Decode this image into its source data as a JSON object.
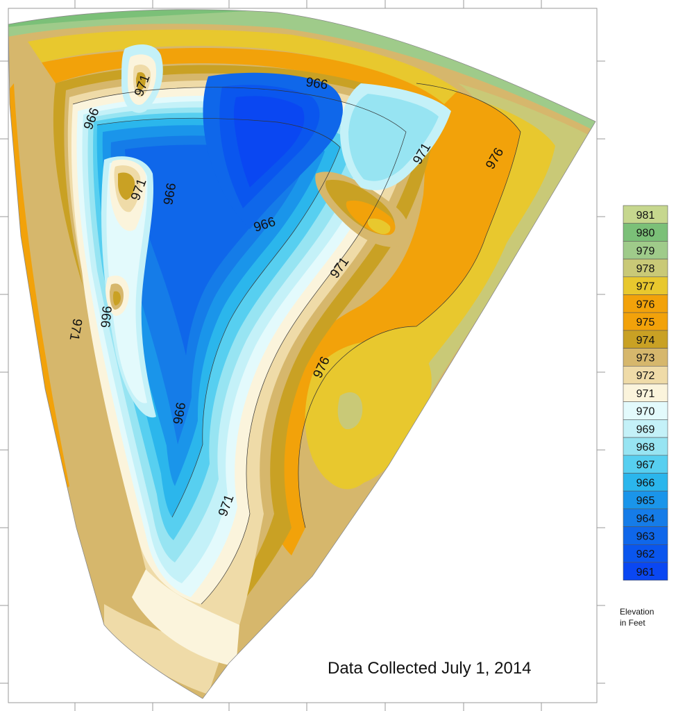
{
  "map": {
    "caption": "Data Collected July 1, 2014",
    "legend_title_line1": "Elevation",
    "legend_title_line2": "in Feet",
    "legend": [
      {
        "label": "981",
        "color": "#c6d78e"
      },
      {
        "label": "980",
        "color": "#7bc078"
      },
      {
        "label": "979",
        "color": "#9fcb8a"
      },
      {
        "label": "978",
        "color": "#c9c977"
      },
      {
        "label": "977",
        "color": "#e8c82e"
      },
      {
        "label": "976",
        "color": "#f2a20a"
      },
      {
        "label": "975",
        "color": "#f2a20a"
      },
      {
        "label": "974",
        "color": "#c9a124"
      },
      {
        "label": "973",
        "color": "#d6b76c"
      },
      {
        "label": "972",
        "color": "#efdba8"
      },
      {
        "label": "971",
        "color": "#fbf4dc"
      },
      {
        "label": "970",
        "color": "#e3fafc"
      },
      {
        "label": "969",
        "color": "#c4f1f8"
      },
      {
        "label": "968",
        "color": "#97e4f2"
      },
      {
        "label": "967",
        "color": "#57cff0"
      },
      {
        "label": "966",
        "color": "#2bb6ec"
      },
      {
        "label": "965",
        "color": "#1a95ea"
      },
      {
        "label": "964",
        "color": "#157ce8"
      },
      {
        "label": "963",
        "color": "#0f67ea"
      },
      {
        "label": "962",
        "color": "#0a56ee"
      },
      {
        "label": "961",
        "color": "#0a47f2"
      }
    ],
    "contour_labels": [
      {
        "text": "971"
      },
      {
        "text": "966"
      },
      {
        "text": "966"
      },
      {
        "text": "971"
      },
      {
        "text": "976"
      },
      {
        "text": "971"
      },
      {
        "text": "966"
      },
      {
        "text": "966"
      },
      {
        "text": "971"
      },
      {
        "text": "966"
      },
      {
        "text": "971"
      },
      {
        "text": "976"
      },
      {
        "text": "966"
      },
      {
        "text": "971"
      }
    ]
  }
}
